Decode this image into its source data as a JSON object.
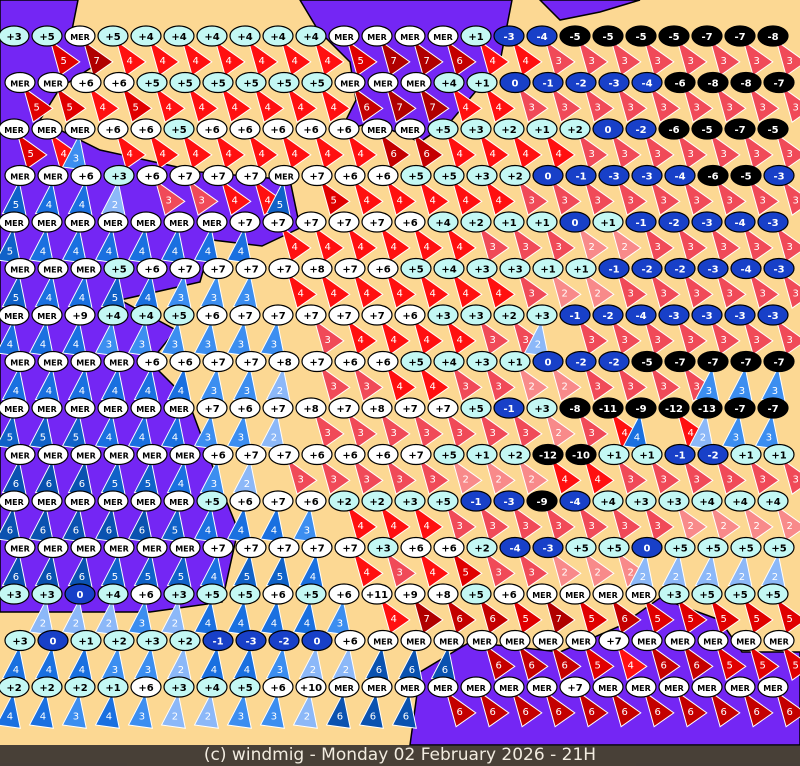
{
  "caption": "(c) windmig - Monday 02 February 2026 - 21H",
  "colors": {
    "sea": "#7426f4",
    "land": "#fcd893",
    "coast": "#000000",
    "temp_warm": "#ffffff",
    "temp_mild": "#c4f8f4",
    "temp_cold": "#1840c8",
    "temp_freezing": "#000000",
    "wind_blue": {
      "2": "#8cb8f8",
      "3": "#3c8ef0",
      "4": "#1a70e0",
      "5": "#1062c8",
      "6": "#0a52b0",
      "7": "#0a4498"
    },
    "wind_red": {
      "2": "#f88a8a",
      "3": "#f04a58",
      "4": "#ff1010",
      "5": "#e00000",
      "6": "#c40000",
      "7": "#b00000"
    }
  },
  "legend_note": "cell format: temperature / wind force (Beaufort) / arrow colour group (r=red, b=blue, n=none)",
  "rows": [
    [
      "+3 2 n",
      "+5 5 r",
      "MER 7 r",
      "+5 4 r",
      "+4 4 r",
      "+4 4 r",
      "+4 4 r",
      "+4 4 r",
      "+4 4 r",
      "+4 4 r",
      "MER 5 r",
      "MER 7 r",
      "MER 7 r",
      "MER 6 r",
      "+1 4 r",
      "-3 4 r",
      "-4 3 r",
      "-5 3 r",
      "-5 3 r",
      "-5 3 r",
      "-5 3 r",
      "-7 3 r",
      "-7 3 r",
      "-8 3 r"
    ],
    [
      "MER 5 r",
      "MER 5 r",
      "+6 4 r",
      "+6 5 r",
      "+5 4 r",
      "+5 4 r",
      "+5 4 r",
      "+5 4 r",
      "+5 4 r",
      "+5 4 r",
      "MER 6 r",
      "MER 7 r",
      "MER 7 r",
      "+4 4 r",
      "+1 4 r",
      "0 3 r",
      "-1 3 r",
      "-2 3 r",
      "-3 3 r",
      "-4 3 r",
      "-6 3 r",
      "-8 3 r",
      "-8 3 r",
      "-7 3 r"
    ],
    [
      "MER 5 r",
      "MER 4 r",
      "MER 3 b",
      "+6 4 r",
      "+6 4 r",
      "+5 4 r",
      "+6 4 r",
      "+6 4 r",
      "+6 4 r",
      "+6 4 r",
      "+6 4 r",
      "MER 6 r",
      "MER 6 r",
      "+5 4 r",
      "+3 4 r",
      "+2 4 r",
      "+1 4 r",
      "+2 3 r",
      "0 3 r",
      "-2 3 r",
      "-6 3 r",
      "-5 3 r",
      "-7 3 r",
      "-5 3 r"
    ],
    [
      "MER 5 b",
      "MER 4 b",
      "+6 4 b",
      "+3 2 b",
      "+6 3 r",
      "+7 3 r",
      "+7 4 r",
      "+7 4 r",
      "MER 5 b",
      "+7 5 r",
      "+6 4 r",
      "+6 4 r",
      "+5 4 r",
      "+5 4 r",
      "+3 4 r",
      "+2 3 r",
      "0 3 r",
      "-1 3 r",
      "-3 3 r",
      "-3 3 r",
      "-4 3 r",
      "-6 3 r",
      "-5 3 r",
      "-3 3 r"
    ],
    [
      "MER 5 b",
      "MER 4 b",
      "MER 4 b",
      "MER 4 b",
      "MER 4 b",
      "MER 4 b",
      "MER 4 b",
      "+7 4 b",
      "+7 4 r",
      "+7 4 r",
      "+7 4 r",
      "+7 4 r",
      "+6 4 r",
      "+4 4 r",
      "+2 3 r",
      "+1 3 r",
      "+1 3 r",
      "0 2 r",
      "+1 2 r",
      "-1 3 r",
      "-2 3 r",
      "-3 3 r",
      "-4 3 r",
      "-3 3 r"
    ],
    [
      "MER 5 b",
      "MER 4 b",
      "MER 4 b",
      "+5 5 b",
      "+6 4 b",
      "+7 3 b",
      "+7 3 b",
      "+7 3 b",
      "+7 4 r",
      "+8 4 r",
      "+7 4 r",
      "+6 4 r",
      "+5 4 r",
      "+4 4 r",
      "+3 4 r",
      "+3 3 r",
      "+1 2 r",
      "+1 2 r",
      "-1 3 r",
      "-2 3 r",
      "-2 3 r",
      "-3 3 r",
      "-4 3 r",
      "-3 3 r"
    ],
    [
      "MER 4 b",
      "MER 4 b",
      "+9 4 b",
      "+4 3 b",
      "+4 3 b",
      "+5 3 b",
      "+6 3 b",
      "+7 3 b",
      "+7 3 b",
      "+7 3 r",
      "+7 4 r",
      "+7 4 r",
      "+6 4 r",
      "+3 4 r",
      "+3 3 r",
      "+2 3 r",
      "+3 2 b",
      "-1 3 r",
      "-2 3 r",
      "-4 3 r",
      "-3 3 r",
      "-3 3 r",
      "-3 3 r",
      "-3 3 r"
    ],
    [
      "MER 4 b",
      "MER 4 b",
      "MER 4 b",
      "MER 4 b",
      "+6 4 b",
      "+6 4 b",
      "+7 3 b",
      "+7 3 b",
      "+8 2 b",
      "+7 3 r",
      "+6 3 r",
      "+6 4 r",
      "+5 4 r",
      "+4 3 r",
      "+3 3 r",
      "+1 2 r",
      "0 2 r",
      "-2 3 r",
      "-2 3 r",
      "-5 3 r",
      "-7 3 r",
      "-7 3 b",
      "-7 3 b",
      "-7 3 b"
    ],
    [
      "MER 5 b",
      "MER 5 b",
      "MER 5 b",
      "MER 4 b",
      "MER 4 b",
      "MER 4 b",
      "+7 3 b",
      "+6 3 b",
      "+7 2 b",
      "+8 3 r",
      "+7 3 r",
      "+8 3 r",
      "+7 3 r",
      "+7 3 r",
      "+5 3 r",
      "-1 3 r",
      "+3 2 r",
      "-8 3 r",
      "-11 4 r",
      "-9 4 b",
      "-12 4 r",
      "-13 2 b",
      "-7 3 b",
      "-7 3 b"
    ],
    [
      "MER 6 b",
      "MER 6 b",
      "MER 6 b",
      "MER 5 b",
      "MER 5 b",
      "MER 4 b",
      "+6 3 b",
      "+7 2 b",
      "+7 3 r",
      "+6 3 r",
      "+6 3 r",
      "+6 3 r",
      "+7 3 r",
      "+5 2 r",
      "+1 2 r",
      "+2 2 r",
      "-12 4 r",
      "-10 4 r",
      "+1 3 r",
      "+1 3 r",
      "-1 3 r",
      "-2 3 r",
      "+1 3 r",
      "+1 3 r"
    ],
    [
      "MER 6 b",
      "MER 6 b",
      "MER 6 b",
      "MER 6 b",
      "MER 6 b",
      "MER 5 b",
      "+5 4 b",
      "+6 4 b",
      "+7 4 b",
      "+6 3 b",
      "+2 4 r",
      "+2 4 r",
      "+3 4 r",
      "+5 3 r",
      "-1 3 r",
      "-3 3 r",
      "-9 3 r",
      "-4 3 r",
      "+4 3 r",
      "+3 3 r",
      "+3 2 r",
      "+4 2 r",
      "+4 2 r",
      "+4 2 r"
    ],
    [
      "MER 6 b",
      "MER 6 b",
      "MER 6 b",
      "MER 5 b",
      "MER 5 b",
      "MER 5 b",
      "+7 4 b",
      "+7 5 b",
      "+7 5 b",
      "+7 4 b",
      "+7 4 r",
      "+3 3 r",
      "+6 4 r",
      "+6 5 r",
      "+2 3 r",
      "-4 3 r",
      "-3 2 r",
      "+5 2 r",
      "+5 2 r",
      "0 2 b",
      "+5 2 b",
      "+5 2 b",
      "+5 2 b",
      "+5 2 b"
    ],
    [
      "+3 2 n",
      "+3 2 b",
      "0 2 b",
      "+4 2 b",
      "+6 3 b",
      "+3 2 b",
      "+5 4 b",
      "+5 4 b",
      "+6 4 b",
      "+5 4 b",
      "+6 3 b",
      "+11 4 r",
      "+9 7 r",
      "+8 6 r",
      "+5 6 r",
      "+6 5 r",
      "MER 7 r",
      "MER 5 r",
      "MER 6 r",
      "MER 5 r",
      "+3 5 r",
      "+5 5 r",
      "+5 5 r",
      "+5 5 r"
    ],
    [
      "+3 4 b",
      "0 4 b",
      "+1 4 b",
      "+2 3 b",
      "+3 3 b",
      "+2 2 b",
      "-1 4 b",
      "-3 4 b",
      "-2 3 b",
      "0 2 b",
      "+6 2 b",
      "MER 6 b",
      "MER 6 b",
      "MER 6 b",
      "MER 6 r",
      "MER 6 r",
      "MER 6 r",
      "MER 5 r",
      "+7 4 r",
      "MER 6 r",
      "MER 6 r",
      "MER 5 r",
      "MER 5 r",
      "MER 5 r"
    ],
    [
      "+2 4 b",
      "+2 4 b",
      "+2 3 b",
      "+1 4 b",
      "+6 3 b",
      "+3 2 b",
      "+4 2 b",
      "+5 3 b",
      "+6 3 b",
      "+10 2 b",
      "MER 6 b",
      "MER 6 b",
      "MER 6 b",
      "MER 6 r",
      "MER 6 r",
      "MER 6 r",
      "MER 6 r",
      "+7 6 r",
      "MER 6 r",
      "MER 6 r",
      "MER 6 r",
      "MER 6 r",
      "MER 6 r",
      "MER 6 r"
    ]
  ]
}
